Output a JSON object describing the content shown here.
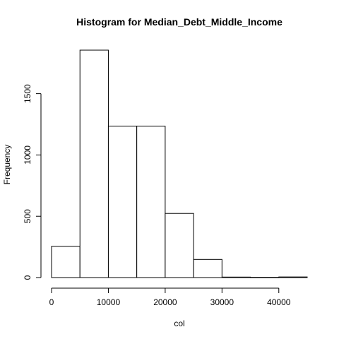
{
  "chart_data": {
    "type": "bar",
    "title": "Histogram for  Median_Debt_Middle_Income",
    "xlabel": "col",
    "ylabel": "Frequency",
    "bins": [
      {
        "start": 0,
        "end": 5000,
        "count": 255
      },
      {
        "start": 5000,
        "end": 10000,
        "count": 1855
      },
      {
        "start": 10000,
        "end": 15000,
        "count": 1235
      },
      {
        "start": 15000,
        "end": 20000,
        "count": 1235
      },
      {
        "start": 20000,
        "end": 25000,
        "count": 523
      },
      {
        "start": 25000,
        "end": 30000,
        "count": 148
      },
      {
        "start": 30000,
        "end": 35000,
        "count": 4
      },
      {
        "start": 35000,
        "end": 40000,
        "count": 2
      },
      {
        "start": 40000,
        "end": 45000,
        "count": 5
      }
    ],
    "xlim": [
      0,
      45000
    ],
    "ylim": [
      0,
      1855
    ],
    "x_ticks": [
      0,
      10000,
      20000,
      30000,
      40000
    ],
    "x_tick_labels": [
      "0",
      "10000",
      "20000",
      "30000",
      "40000"
    ],
    "y_ticks": [
      0,
      500,
      1000,
      1500
    ],
    "y_tick_labels": [
      "0",
      "500",
      "1000",
      "1500"
    ],
    "grid": false,
    "legend": "none"
  }
}
